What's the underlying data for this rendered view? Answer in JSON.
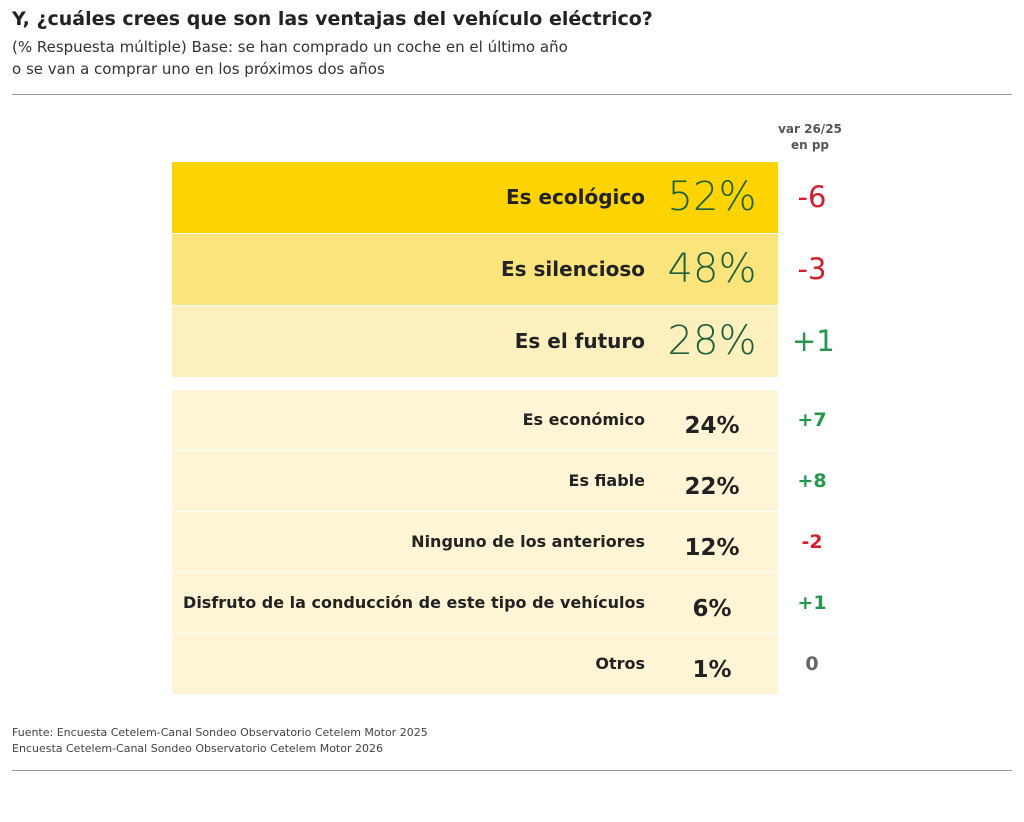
{
  "header": {
    "title": "Y, ¿cuáles crees que son las ventajas del vehículo eléctrico?",
    "subtitle": [
      "(% Respuesta múltiple)  Base: se han comprado un coche en el último año",
      "o se van a comprar uno en los próximos dos años"
    ]
  },
  "table": {
    "change_header": [
      "var 26/25",
      "en pp"
    ],
    "top_rows": [
      {
        "label": "Es ecológico",
        "share": "52%",
        "change": "-6"
      },
      {
        "label": "Es silencioso",
        "share": "48%",
        "change": "-3"
      },
      {
        "label": "Es el futuro",
        "share": "28%",
        "change": "+1"
      }
    ],
    "rows": [
      {
        "label": "Es económico",
        "share": "24%",
        "change": "+7"
      },
      {
        "label": "Es fiable",
        "share": "22%",
        "change": "+8"
      },
      {
        "label": "Ninguno de los anteriores",
        "share": "12%",
        "change": "-2"
      },
      {
        "label": "Disfruto de la conducción de este tipo de vehículos",
        "share": "6%",
        "change": "+1"
      },
      {
        "label": "Otros",
        "share": "1%",
        "change": "0"
      }
    ]
  },
  "footer": {
    "source": [
      "Fuente: Encuesta Cetelem-Canal Sondeo Observatorio Cetelem Motor 2025",
      "Encuesta Cetelem-Canal Sondeo Observatorio Cetelem Motor 2026"
    ]
  }
}
